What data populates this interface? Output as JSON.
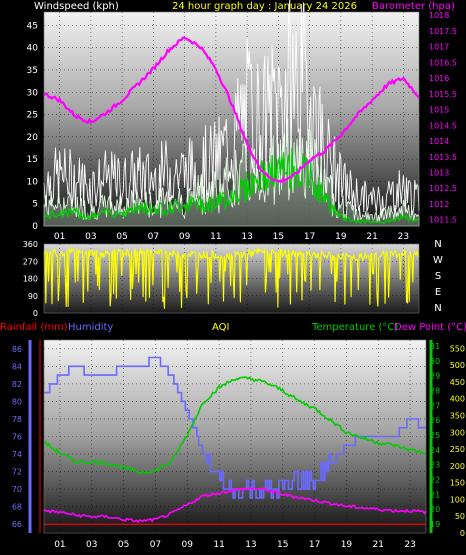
{
  "header": {
    "left_title": "Windspeed (kph)",
    "center_title": "24 hour graph day : January 24 2026",
    "right_title": "Barometer (hpa)"
  },
  "colors": {
    "windspeed": "#ffffff",
    "gust": "#ffffff",
    "avg_wind": "#00cc00",
    "barometer": "#ff00ff",
    "direction": "#ffff00",
    "humidity": "#6a6aff",
    "temperature": "#00cc00",
    "dewpoint": "#ff00ff",
    "rainfall": "#ff0000",
    "aqi": "#ffff00",
    "axis_text": "#ffffff"
  },
  "x_ticks": [
    "01",
    "03",
    "05",
    "07",
    "09",
    "11",
    "13",
    "15",
    "17",
    "19",
    "21",
    "23"
  ],
  "chart_data": [
    {
      "type": "line",
      "id": "wind",
      "ylabel_left": "Windspeed (kph)",
      "ylabel_right": "Barometer (hpa)",
      "ylim": [
        0,
        48
      ],
      "yticks": [
        0,
        5,
        10,
        15,
        20,
        25,
        30,
        35,
        40,
        45
      ],
      "y2lim": [
        1011.3,
        1018.1
      ],
      "y2ticks": [
        "1011.5",
        "1012",
        "1012.5",
        "1013",
        "1013.5",
        "1014",
        "1014.5",
        "1015",
        "1015.5",
        "1016",
        "1016.5",
        "1017",
        "1017.5",
        "1018"
      ],
      "xlim": [
        0,
        24
      ],
      "series": [
        {
          "name": "Barometer (hpa)",
          "axis": "right",
          "x": [
            0,
            1,
            2,
            3,
            4,
            5,
            6,
            7,
            8,
            9,
            10,
            11,
            12,
            13,
            14,
            15,
            16,
            17,
            18,
            19,
            20,
            21,
            22,
            23,
            24
          ],
          "values": [
            1015.5,
            1015.3,
            1014.8,
            1014.6,
            1014.9,
            1015.3,
            1015.8,
            1016.3,
            1016.9,
            1017.3,
            1017.0,
            1016.3,
            1015.2,
            1013.9,
            1013.0,
            1012.7,
            1012.9,
            1013.4,
            1013.7,
            1014.2,
            1014.8,
            1015.3,
            1015.8,
            1016.0,
            1015.4
          ]
        },
        {
          "name": "Gust",
          "axis": "left",
          "x": [
            0,
            1,
            2,
            3,
            4,
            5,
            6,
            7,
            8,
            9,
            10,
            11,
            12,
            13,
            14,
            15,
            16,
            17,
            18,
            19,
            20,
            21,
            22,
            23,
            24
          ],
          "values": [
            14,
            16,
            15,
            13,
            15,
            14,
            16,
            15,
            18,
            17,
            19,
            21,
            27,
            37,
            33,
            40,
            47,
            42,
            24,
            14,
            10,
            8,
            10,
            12,
            8
          ]
        },
        {
          "name": "Windspeed",
          "axis": "left",
          "x": [
            0,
            1,
            2,
            3,
            4,
            5,
            6,
            7,
            8,
            9,
            10,
            11,
            12,
            13,
            14,
            15,
            16,
            17,
            18,
            19,
            20,
            21,
            22,
            23,
            24
          ],
          "values": [
            5,
            6,
            5,
            4,
            5,
            5,
            6,
            5,
            7,
            6,
            8,
            9,
            11,
            14,
            13,
            15,
            18,
            16,
            9,
            5,
            3,
            2,
            3,
            4,
            2
          ]
        },
        {
          "name": "Average",
          "axis": "left",
          "x": [
            0,
            1,
            2,
            3,
            4,
            5,
            6,
            7,
            8,
            9,
            10,
            11,
            12,
            13,
            14,
            15,
            16,
            17,
            18,
            19,
            20,
            21,
            22,
            23,
            24
          ],
          "values": [
            2,
            3,
            3,
            2,
            3,
            3,
            4,
            4,
            4,
            5,
            5,
            5,
            7,
            9,
            11,
            12,
            13,
            11,
            6,
            2,
            1,
            1,
            1,
            2,
            1
          ]
        }
      ]
    },
    {
      "type": "line",
      "id": "direction",
      "ylim": [
        0,
        360
      ],
      "yticks": [
        0,
        90,
        180,
        270,
        360
      ],
      "compass": [
        "N",
        "W",
        "S",
        "E",
        "N"
      ],
      "xlim": [
        0,
        24
      ],
      "series": [
        {
          "name": "Wind direction",
          "x": [
            0,
            2,
            4,
            6,
            8,
            10,
            12,
            14,
            16,
            18,
            20,
            22,
            24
          ],
          "values": [
            320,
            315,
            310,
            318,
            312,
            305,
            300,
            320,
            310,
            300,
            290,
            310,
            305
          ]
        }
      ]
    },
    {
      "type": "line",
      "id": "temp_hum",
      "labels": {
        "rainfall": "Rainfall (mm)",
        "humidity": "Humidity",
        "aqi": "AQI",
        "temperature": "Temperature (°C)",
        "dewpoint": "Dew Point (°C)"
      },
      "ylim_humidity": [
        65,
        87
      ],
      "humidity_ticks": [
        66,
        68,
        70,
        72,
        74,
        76,
        78,
        80,
        82,
        84,
        86
      ],
      "ylim_temp": [
        18.4,
        31.4
      ],
      "temp_ticks": [
        19,
        20,
        21,
        22,
        23,
        24,
        25,
        26,
        27,
        28,
        29,
        30,
        31
      ],
      "ylim_aqi": [
        0,
        575
      ],
      "aqi_ticks": [
        0,
        50,
        100,
        150,
        200,
        250,
        300,
        350,
        400,
        450,
        500,
        550
      ],
      "xlim": [
        0,
        24
      ],
      "series": [
        {
          "name": "Humidity",
          "axis": "humidity",
          "x": [
            0,
            1,
            2,
            3,
            4,
            5,
            6,
            7,
            8,
            9,
            10,
            11,
            12,
            13,
            14,
            15,
            16,
            17,
            18,
            19,
            20,
            21,
            22,
            23,
            24
          ],
          "values": [
            81,
            83,
            84,
            83,
            83,
            84,
            84,
            85,
            83,
            79,
            74,
            71,
            70,
            70,
            70,
            70,
            71,
            71,
            73,
            75,
            76,
            76,
            76,
            78,
            77
          ]
        },
        {
          "name": "Temperature (°C)",
          "axis": "temp",
          "x": [
            0,
            1,
            2,
            3,
            4,
            5,
            6,
            7,
            8,
            9,
            10,
            11,
            12,
            13,
            14,
            15,
            16,
            17,
            18,
            19,
            20,
            21,
            22,
            23,
            24
          ],
          "values": [
            24.5,
            23.8,
            23.2,
            23.2,
            23.1,
            22.8,
            22.5,
            22.6,
            23.2,
            25.0,
            27.2,
            28.2,
            28.8,
            28.8,
            28.5,
            28.0,
            27.3,
            26.8,
            26.0,
            25.2,
            24.8,
            24.5,
            24.3,
            24.0,
            23.8
          ]
        },
        {
          "name": "Dew Point (°C)",
          "axis": "temp",
          "x": [
            0,
            1,
            2,
            3,
            4,
            5,
            6,
            7,
            8,
            9,
            10,
            11,
            12,
            13,
            14,
            15,
            16,
            17,
            18,
            19,
            20,
            21,
            22,
            23,
            24
          ],
          "values": [
            19.9,
            19.8,
            19.6,
            19.5,
            19.5,
            19.3,
            19.2,
            19.3,
            19.7,
            20.3,
            20.9,
            21.1,
            21.3,
            21.4,
            21.3,
            21.0,
            20.8,
            20.6,
            20.4,
            20.2,
            20.1,
            20.0,
            19.9,
            19.9,
            19.8
          ]
        },
        {
          "name": "Rainfall (mm)",
          "axis": "humidity",
          "x": [
            0,
            24
          ],
          "values": [
            66,
            66
          ]
        }
      ]
    }
  ]
}
